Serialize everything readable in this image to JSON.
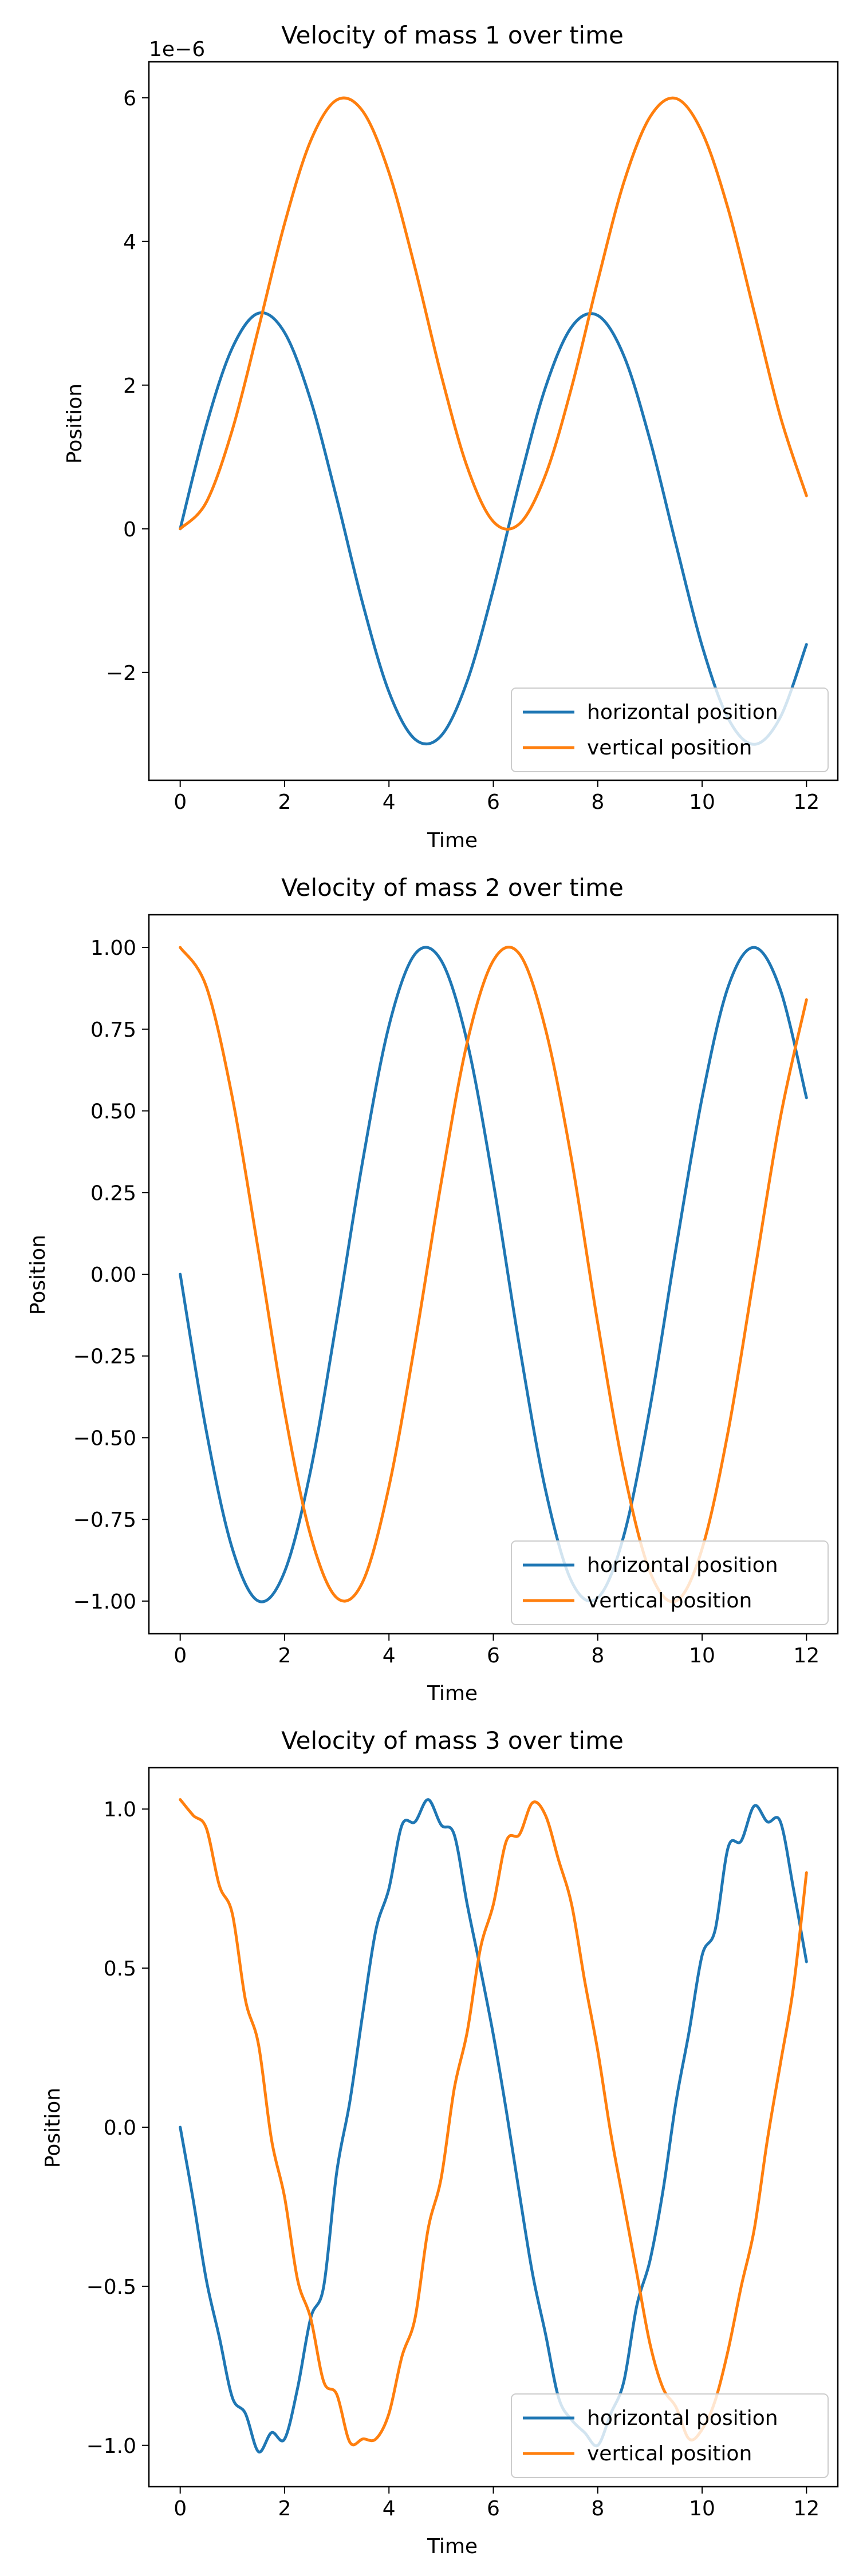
{
  "figure": {
    "colors": {
      "horizontal": "#1f77b4",
      "vertical": "#ff7f0e",
      "axes": "#000000",
      "background": "#ffffff"
    }
  },
  "chart_data": [
    {
      "type": "line",
      "title": "Velocity of mass 1 over time",
      "xlabel": "Time",
      "ylabel": "Position",
      "offset_text": "1e−6",
      "xlim": [
        -0.6,
        12.6
      ],
      "ylim": [
        -3.5e-06,
        6.5e-06
      ],
      "xticks": [
        0,
        2,
        4,
        6,
        8,
        10,
        12
      ],
      "xtick_labels": [
        "0",
        "2",
        "4",
        "6",
        "8",
        "10",
        "12"
      ],
      "yticks": [
        -2e-06,
        0,
        2e-06,
        4e-06,
        6e-06
      ],
      "ytick_labels": [
        "−2",
        "0",
        "2",
        "4",
        "6"
      ],
      "grid": false,
      "legend": "lower right",
      "series": [
        {
          "name": "horizontal position",
          "color": "#1f77b4",
          "x": [
            0,
            0.5,
            1,
            1.5,
            2,
            2.5,
            3,
            3.5,
            4,
            4.5,
            5,
            5.5,
            6,
            6.5,
            7,
            7.5,
            8,
            8.5,
            9,
            9.5,
            10,
            10.5,
            11,
            11.5,
            12
          ],
          "values": [
            0,
            1.44e-06,
            2.52e-06,
            3e-06,
            2.73e-06,
            1.79e-06,
            4.2e-07,
            -1.05e-06,
            -2.27e-06,
            -2.93e-06,
            -2.88e-06,
            -2.12e-06,
            -8.4e-07,
            6.5e-07,
            1.97e-06,
            2.81e-06,
            2.97e-06,
            2.41e-06,
            1.24e-06,
            -2.2e-07,
            -1.63e-06,
            -2.64e-06,
            -3e-06,
            -2.62e-06,
            -1.61e-06
          ]
        },
        {
          "name": "vertical position",
          "color": "#ff7f0e",
          "x": [
            0,
            0.5,
            1,
            1.5,
            2,
            2.5,
            3,
            3.5,
            4,
            4.5,
            5,
            5.5,
            6,
            6.5,
            7,
            7.5,
            8,
            8.5,
            9,
            9.5,
            10,
            10.5,
            11,
            11.5,
            12
          ],
          "values": [
            0,
            3.7e-07,
            1.38e-06,
            2.79e-06,
            4.25e-06,
            5.4e-06,
            5.97e-06,
            5.81e-06,
            4.96e-06,
            3.63e-06,
            2.14e-06,
            8.6e-07,
            1e-07,
            7e-08,
            7.5e-07,
            1.97e-06,
            3.45e-06,
            4.82e-06,
            5.73e-06,
            5.99e-06,
            5.52e-06,
            4.45e-06,
            3.01e-06,
            1.56e-06,
            4.6e-07
          ]
        }
      ]
    },
    {
      "type": "line",
      "title": "Velocity of mass 2 over time",
      "xlabel": "Time",
      "ylabel": "Position",
      "xlim": [
        -0.6,
        12.6
      ],
      "ylim": [
        -1.1,
        1.1
      ],
      "xticks": [
        0,
        2,
        4,
        6,
        8,
        10,
        12
      ],
      "xtick_labels": [
        "0",
        "2",
        "4",
        "6",
        "8",
        "10",
        "12"
      ],
      "yticks": [
        -1.0,
        -0.75,
        -0.5,
        -0.25,
        0.0,
        0.25,
        0.5,
        0.75,
        1.0
      ],
      "ytick_labels": [
        "−1.00",
        "−0.75",
        "−0.50",
        "−0.25",
        "0.00",
        "0.25",
        "0.50",
        "0.75",
        "1.00"
      ],
      "grid": false,
      "legend": "lower right",
      "series": [
        {
          "name": "horizontal position",
          "color": "#1f77b4",
          "x": [
            0,
            0.5,
            1,
            1.5,
            2,
            2.5,
            3,
            3.5,
            4,
            4.5,
            5,
            5.5,
            6,
            6.5,
            7,
            7.5,
            8,
            8.5,
            9,
            9.5,
            10,
            10.5,
            11,
            11.5,
            12
          ],
          "values": [
            0,
            -0.48,
            -0.84,
            -1.0,
            -0.91,
            -0.6,
            -0.14,
            0.35,
            0.76,
            0.98,
            0.96,
            0.71,
            0.28,
            -0.22,
            -0.66,
            -0.94,
            -0.99,
            -0.8,
            -0.41,
            0.08,
            0.54,
            0.88,
            1.0,
            0.87,
            0.54
          ]
        },
        {
          "name": "vertical position",
          "color": "#ff7f0e",
          "x": [
            0,
            0.5,
            1,
            1.5,
            2,
            2.5,
            3,
            3.5,
            4,
            4.5,
            5,
            5.5,
            6,
            6.5,
            7,
            7.5,
            8,
            8.5,
            9,
            9.5,
            10,
            10.5,
            11,
            11.5,
            12
          ],
          "values": [
            1.0,
            0.88,
            0.54,
            0.07,
            -0.42,
            -0.8,
            -0.99,
            -0.94,
            -0.65,
            -0.21,
            0.28,
            0.71,
            0.96,
            0.98,
            0.75,
            0.35,
            -0.15,
            -0.6,
            -0.91,
            -1.0,
            -0.84,
            -0.48,
            0.0,
            0.48,
            0.84
          ]
        }
      ]
    },
    {
      "type": "line",
      "title": "Velocity of mass 3 over time",
      "xlabel": "Time",
      "ylabel": "Position",
      "xlim": [
        -0.6,
        12.6
      ],
      "ylim": [
        -1.13,
        1.13
      ],
      "xticks": [
        0,
        2,
        4,
        6,
        8,
        10,
        12
      ],
      "xtick_labels": [
        "0",
        "2",
        "4",
        "6",
        "8",
        "10",
        "12"
      ],
      "yticks": [
        -1.0,
        -0.5,
        0.0,
        0.5,
        1.0
      ],
      "ytick_labels": [
        "−1.0",
        "−0.5",
        "0.0",
        "0.5",
        "1.0"
      ],
      "grid": false,
      "legend": "lower right",
      "series": [
        {
          "name": "horizontal position",
          "color": "#1f77b4",
          "x": [
            0,
            0.25,
            0.5,
            0.75,
            1,
            1.25,
            1.5,
            1.75,
            2,
            2.25,
            2.5,
            2.75,
            3,
            3.25,
            3.5,
            3.75,
            4,
            4.25,
            4.5,
            4.75,
            5,
            5.25,
            5.5,
            5.75,
            6,
            6.25,
            6.5,
            6.75,
            7,
            7.25,
            7.5,
            7.75,
            8,
            8.25,
            8.5,
            8.75,
            9,
            9.25,
            9.5,
            9.75,
            10,
            10.25,
            10.5,
            10.75,
            11,
            11.25,
            11.5,
            11.75,
            12
          ],
          "values": [
            0.0,
            -0.23,
            -0.48,
            -0.66,
            -0.85,
            -0.9,
            -1.02,
            -0.96,
            -0.98,
            -0.82,
            -0.6,
            -0.5,
            -0.14,
            0.08,
            0.36,
            0.62,
            0.75,
            0.95,
            0.96,
            1.03,
            0.95,
            0.92,
            0.7,
            0.5,
            0.29,
            0.05,
            -0.21,
            -0.46,
            -0.65,
            -0.85,
            -0.92,
            -0.96,
            -1.0,
            -0.9,
            -0.8,
            -0.56,
            -0.42,
            -0.2,
            0.08,
            0.3,
            0.54,
            0.62,
            0.88,
            0.9,
            1.01,
            0.96,
            0.96,
            0.75,
            0.52
          ]
        },
        {
          "name": "vertical position",
          "color": "#ff7f0e",
          "x": [
            0,
            0.25,
            0.5,
            0.75,
            1,
            1.25,
            1.5,
            1.75,
            2,
            2.25,
            2.5,
            2.75,
            3,
            3.25,
            3.5,
            3.75,
            4,
            4.25,
            4.5,
            4.75,
            5,
            5.25,
            5.5,
            5.75,
            6,
            6.25,
            6.5,
            6.75,
            7,
            7.25,
            7.5,
            7.75,
            8,
            8.25,
            8.5,
            8.75,
            9,
            9.25,
            9.5,
            9.75,
            10,
            10.25,
            10.5,
            10.75,
            11,
            11.25,
            11.5,
            11.75,
            12
          ],
          "values": [
            1.03,
            0.98,
            0.94,
            0.76,
            0.67,
            0.4,
            0.26,
            -0.04,
            -0.22,
            -0.48,
            -0.6,
            -0.8,
            -0.84,
            -0.99,
            -0.98,
            -0.98,
            -0.9,
            -0.72,
            -0.6,
            -0.32,
            -0.16,
            0.12,
            0.3,
            0.56,
            0.7,
            0.9,
            0.92,
            1.02,
            0.98,
            0.84,
            0.7,
            0.46,
            0.24,
            -0.02,
            -0.24,
            -0.46,
            -0.68,
            -0.82,
            -0.88,
            -0.98,
            -0.95,
            -0.86,
            -0.7,
            -0.5,
            -0.32,
            -0.04,
            0.2,
            0.44,
            0.8
          ]
        }
      ]
    }
  ]
}
